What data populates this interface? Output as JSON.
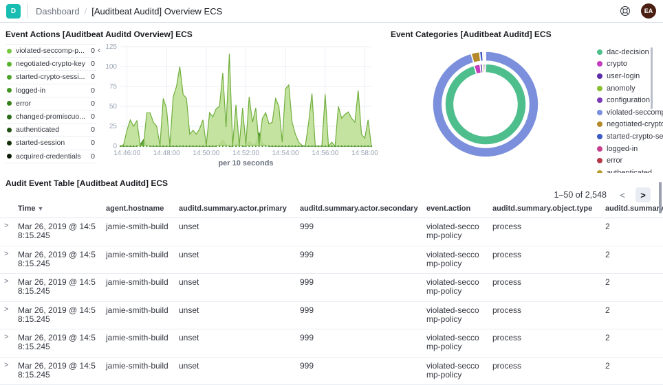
{
  "topbar": {
    "logo_letter": "D",
    "breadcrumb_root": "Dashboard",
    "breadcrumb_separator": "/",
    "breadcrumb_current": "[Auditbeat Auditd] Overview ECS",
    "avatar_initials": "EA",
    "avatar_color": "#4a1f11"
  },
  "event_actions_panel": {
    "title": "Event Actions [Auditbeat Auditd Overview] ECS",
    "legend": [
      {
        "label": "violated-seccomp-p...",
        "value": "0",
        "color": "#76c83f"
      },
      {
        "label": "negotiated-crypto-key",
        "value": "0",
        "color": "#57b32b"
      },
      {
        "label": "started-crypto-sessi...",
        "value": "0",
        "color": "#4ca529"
      },
      {
        "label": "logged-in",
        "value": "0",
        "color": "#419724"
      },
      {
        "label": "error",
        "value": "0",
        "color": "#33801d"
      },
      {
        "label": "changed-promiscuo...",
        "value": "0",
        "color": "#2a6b18"
      },
      {
        "label": "authenticated",
        "value": "0",
        "color": "#205312"
      },
      {
        "label": "started-session",
        "value": "0",
        "color": "#142f09"
      },
      {
        "label": "acquired-credentials",
        "value": "0",
        "color": "#0a1a04"
      }
    ]
  },
  "event_categories_panel": {
    "title": "Event Categories [Auditbeat Auditd] ECS",
    "legend": [
      {
        "label": "dac-decision",
        "color": "#4dbe8c"
      },
      {
        "label": "crypto",
        "color": "#c43cc0"
      },
      {
        "label": "user-login",
        "color": "#5b2ea8"
      },
      {
        "label": "anomoly",
        "color": "#8abf33"
      },
      {
        "label": "configuration",
        "color": "#7c3cb8"
      },
      {
        "label": "violated-seccomp...",
        "color": "#7b8fdc"
      },
      {
        "label": "negotiated-crypto...",
        "color": "#b58a2a"
      },
      {
        "label": "started-crypto-se...",
        "color": "#3b5bc4"
      },
      {
        "label": "logged-in",
        "color": "#c8408e"
      },
      {
        "label": "error",
        "color": "#b43a48"
      },
      {
        "label": "authenticated",
        "color": "#b89b2d"
      }
    ]
  },
  "chart_data": [
    {
      "type": "area",
      "title": "Event Actions [Auditbeat Auditd Overview] ECS",
      "xlabel": "per 10 seconds",
      "x_start": "14:45:40",
      "x_step_seconds": 10,
      "ylim": [
        0,
        125
      ],
      "yticks": [
        0,
        25,
        50,
        75,
        100,
        125
      ],
      "xticks": [
        {
          "i": 2,
          "label": "14:46:00"
        },
        {
          "i": 14,
          "label": "14:48:00"
        },
        {
          "i": 26,
          "label": "14:50:00"
        },
        {
          "i": 38,
          "label": "14:52:00"
        },
        {
          "i": 50,
          "label": "14:54:00"
        },
        {
          "i": 62,
          "label": "14:56:00"
        },
        {
          "i": 74,
          "label": "14:58:00"
        }
      ],
      "grid": true,
      "series": [
        {
          "name": "violated-seccomp-policy",
          "fill": "#bfe096",
          "line": "#6fae3c",
          "values": [
            0,
            2,
            20,
            33,
            25,
            32,
            2,
            0,
            42,
            42,
            30,
            25,
            1,
            60,
            47,
            1,
            62,
            75,
            100,
            65,
            60,
            15,
            20,
            15,
            22,
            33,
            1,
            42,
            37,
            47,
            50,
            92,
            24,
            116,
            1,
            52,
            1,
            48,
            2,
            62,
            30,
            48,
            1,
            35,
            42,
            28,
            30,
            60,
            50,
            5,
            72,
            77,
            30,
            15,
            5,
            1,
            0,
            30,
            66,
            0,
            0,
            0,
            65,
            0,
            5,
            0,
            50,
            35,
            40,
            43,
            35,
            30,
            70,
            15,
            10,
            33,
            0
          ]
        },
        {
          "name": "negotiated-crypto-key",
          "fill": "#549d2d",
          "line": "#41851f",
          "values": [
            0,
            0,
            0,
            0,
            0,
            0,
            2,
            8,
            2,
            0,
            0,
            0,
            0,
            0,
            0,
            0,
            0,
            0,
            0,
            0,
            0,
            0,
            0,
            0,
            0,
            0,
            0,
            0,
            0,
            0,
            2,
            8,
            2,
            0,
            0,
            3,
            2,
            0,
            0,
            6,
            2,
            3,
            17,
            4,
            1,
            0,
            0,
            0,
            0,
            0,
            0,
            0,
            0,
            0,
            0,
            0,
            0,
            0,
            0,
            0,
            0,
            0,
            0,
            0,
            0,
            0,
            0,
            0,
            0,
            0,
            0,
            0,
            0,
            0,
            0,
            0,
            0
          ]
        }
      ]
    },
    {
      "type": "pie",
      "title": "Event Categories [Auditbeat Auditd] ECS",
      "legend_position": "right",
      "rings": [
        {
          "name": "inner",
          "segments": [
            {
              "label": "dac-decision",
              "pct": 95.4,
              "color": "#4dbe8c"
            },
            {
              "label": "crypto",
              "pct": 2.4,
              "color": "#c43cc0"
            },
            {
              "label": "user-login",
              "pct": 0.9,
              "color": "#5b2ea8"
            },
            {
              "label": "anomoly",
              "pct": 0.7,
              "color": "#8abf33"
            },
            {
              "label": "configuration",
              "pct": 0.6,
              "color": "#7c3cb8"
            }
          ]
        },
        {
          "name": "outer",
          "segments": [
            {
              "label": "violated-seccomp-policy",
              "pct": 95.6,
              "color": "#7b8fdc"
            },
            {
              "label": "negotiated-crypto-key",
              "pct": 2.6,
              "color": "#b58a2a"
            },
            {
              "label": "started-crypto-session",
              "pct": 0.9,
              "color": "#3b5bc4"
            },
            {
              "label": "logged-in",
              "pct": 0.4,
              "color": "#c8408e"
            },
            {
              "label": "error",
              "pct": 0.3,
              "color": "#b43a48"
            },
            {
              "label": "authenticated",
              "pct": 0.2,
              "color": "#b89b2d"
            }
          ]
        }
      ]
    }
  ],
  "audit_table_panel": {
    "title": "Audit Event Table [Auditbeat Auditd] ECS",
    "pagination": {
      "range": "1–50 of 2,548",
      "prev": "<",
      "next": ">"
    },
    "columns": [
      {
        "key": "expand",
        "label": "",
        "sortable": false
      },
      {
        "key": "time",
        "label": "Time",
        "sortable": true
      },
      {
        "key": "hostname",
        "label": "agent.hostname",
        "sortable": false
      },
      {
        "key": "primary",
        "label": "auditd.summary.actor.primary",
        "sortable": false
      },
      {
        "key": "secondary",
        "label": "auditd.summary.actor.secondary",
        "sortable": false
      },
      {
        "key": "action",
        "label": "event.action",
        "sortable": false
      },
      {
        "key": "object_type",
        "label": "auditd.summary.object.type",
        "sortable": false
      },
      {
        "key": "summary",
        "label": "auditd.summary",
        "sortable": false
      }
    ],
    "rows": [
      {
        "time": "Mar 26, 2019 @ 14:58:15.245",
        "hostname": "jamie-smith-build",
        "primary": "unset",
        "secondary": "999",
        "action": "violated-seccomp-policy",
        "object_type": "process",
        "summary": "2"
      },
      {
        "time": "Mar 26, 2019 @ 14:58:15.245",
        "hostname": "jamie-smith-build",
        "primary": "unset",
        "secondary": "999",
        "action": "violated-seccomp-policy",
        "object_type": "process",
        "summary": "2"
      },
      {
        "time": "Mar 26, 2019 @ 14:58:15.245",
        "hostname": "jamie-smith-build",
        "primary": "unset",
        "secondary": "999",
        "action": "violated-seccomp-policy",
        "object_type": "process",
        "summary": "2"
      },
      {
        "time": "Mar 26, 2019 @ 14:58:15.245",
        "hostname": "jamie-smith-build",
        "primary": "unset",
        "secondary": "999",
        "action": "violated-seccomp-policy",
        "object_type": "process",
        "summary": "2"
      },
      {
        "time": "Mar 26, 2019 @ 14:58:15.245",
        "hostname": "jamie-smith-build",
        "primary": "unset",
        "secondary": "999",
        "action": "violated-seccomp-policy",
        "object_type": "process",
        "summary": "2"
      },
      {
        "time": "Mar 26, 2019 @ 14:58:15.245",
        "hostname": "jamie-smith-build",
        "primary": "unset",
        "secondary": "999",
        "action": "violated-seccomp-policy",
        "object_type": "process",
        "summary": "2"
      }
    ]
  }
}
